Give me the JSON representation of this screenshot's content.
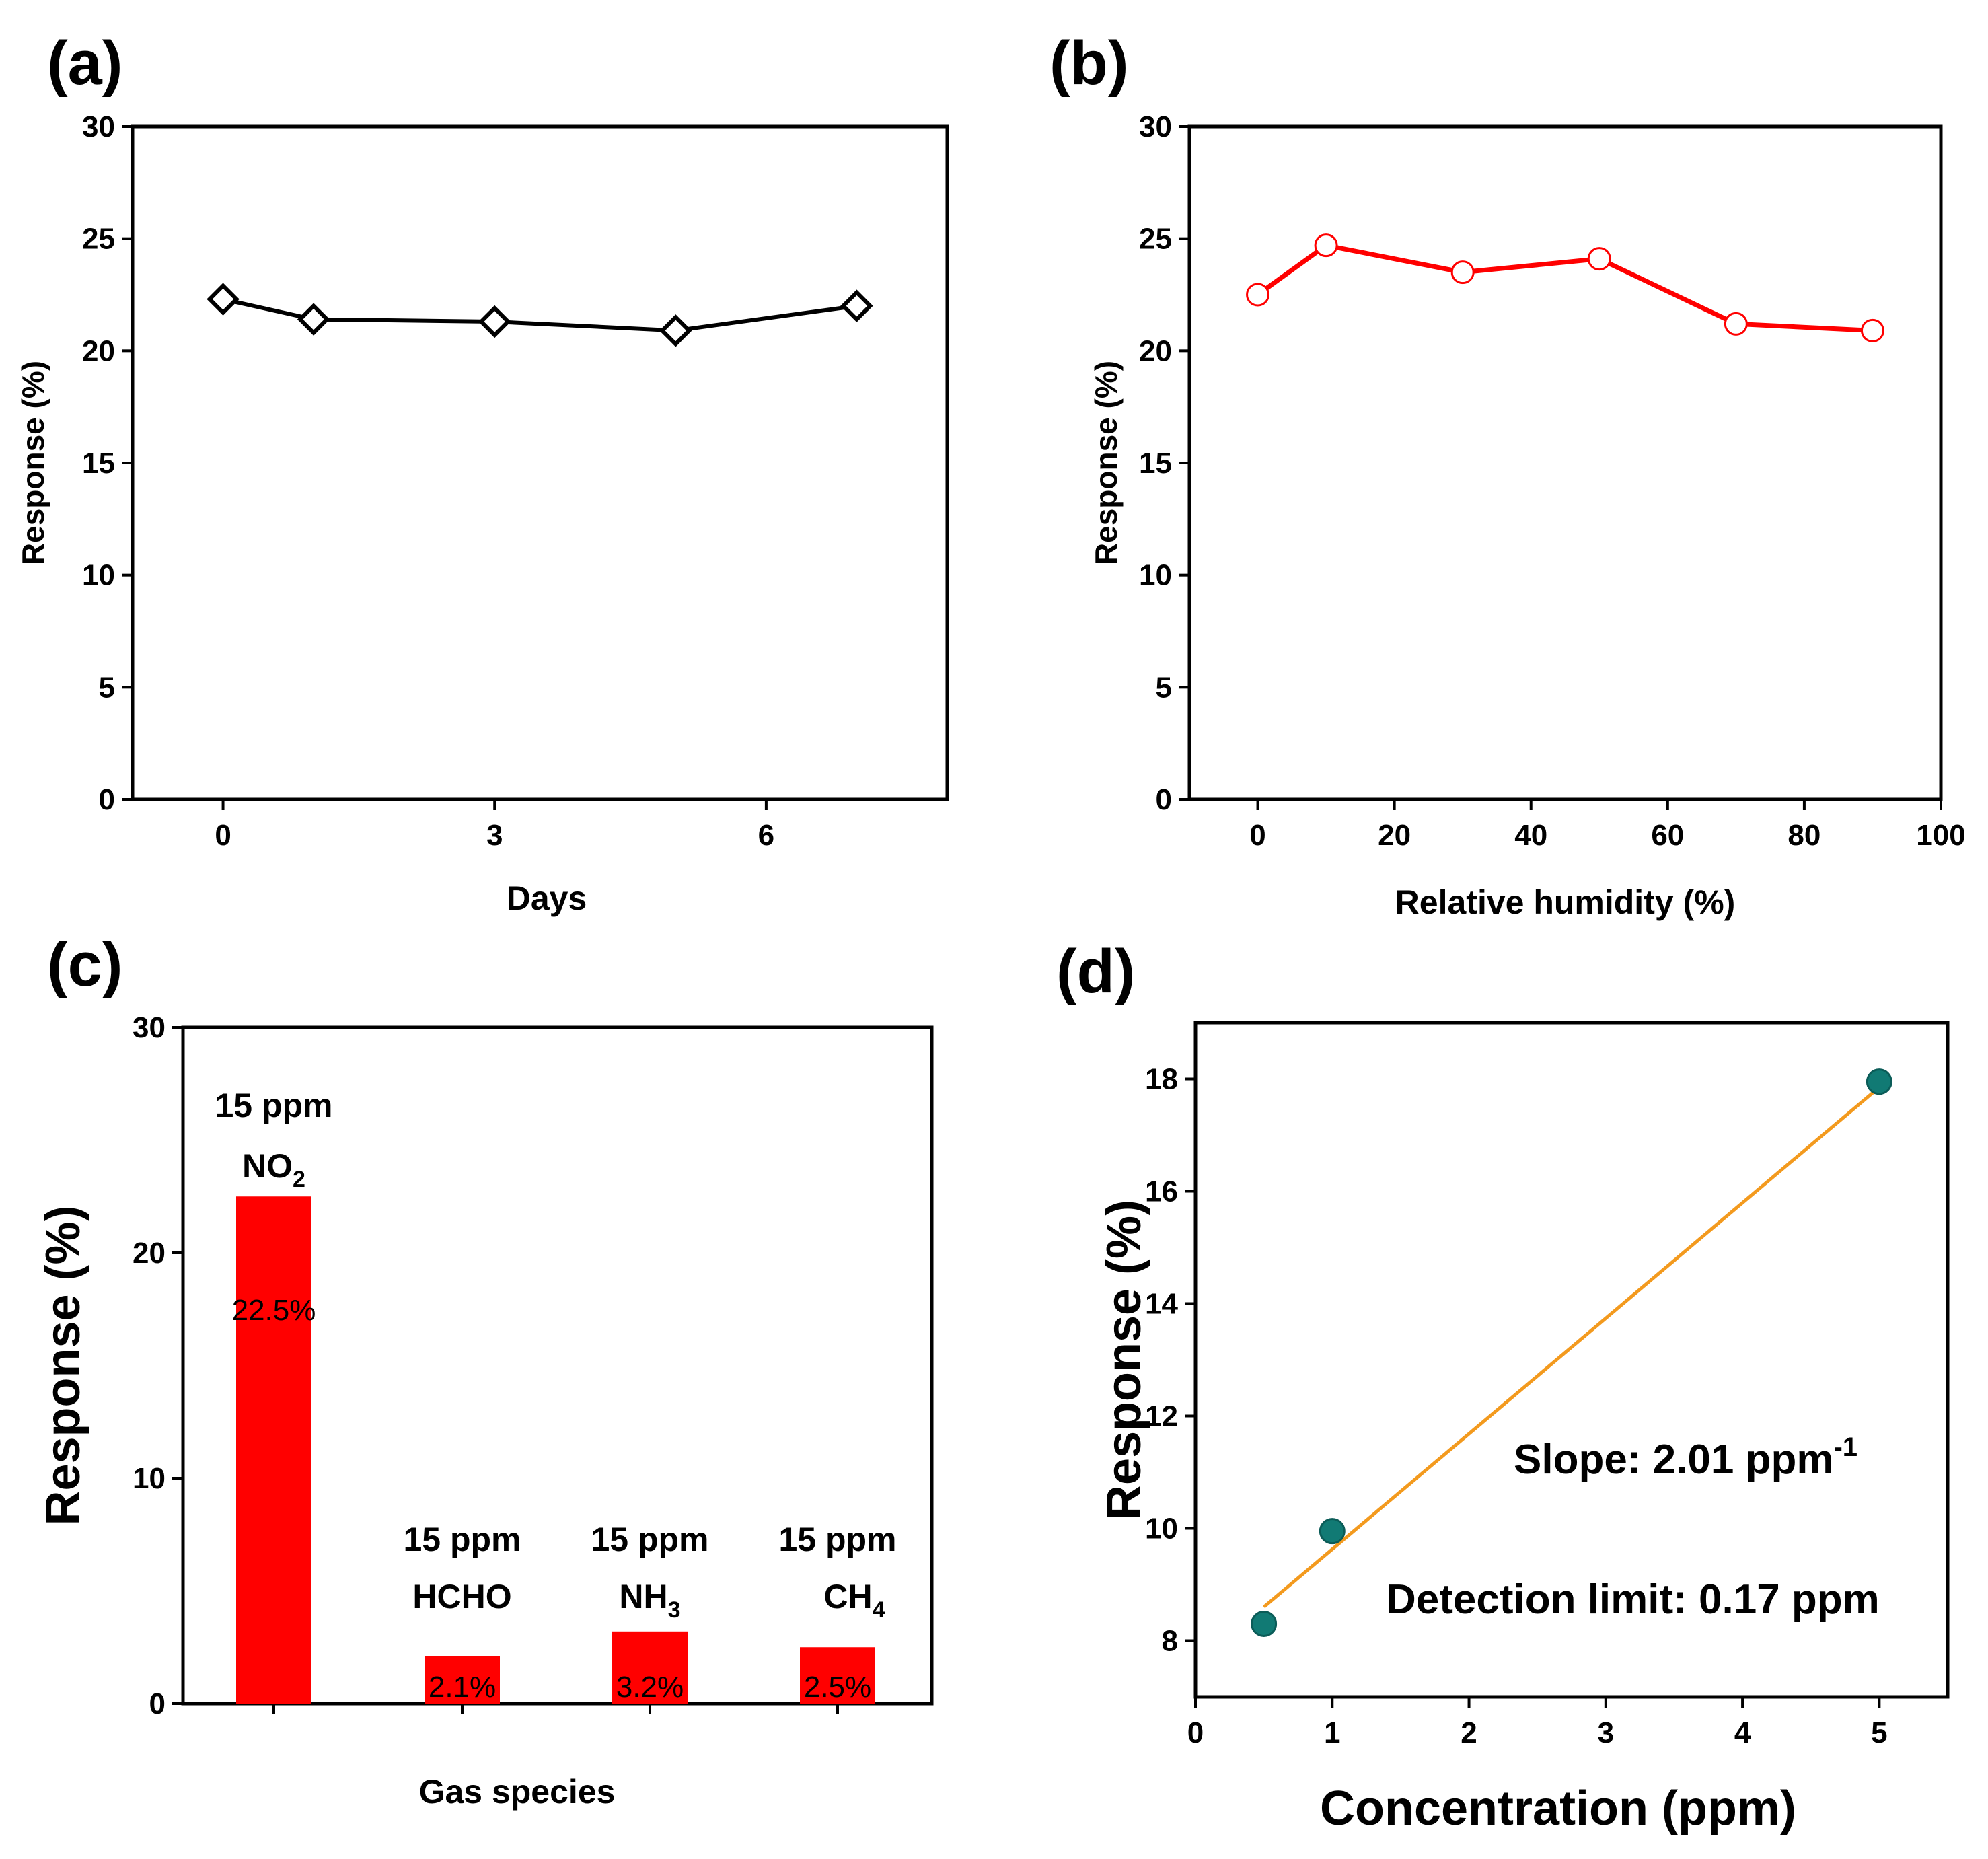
{
  "chart_data": [
    {
      "id": "a",
      "type": "line",
      "panel_label": "(a)",
      "xlabel": "Days",
      "ylabel": "Response (%)",
      "xlim": [
        -1,
        8
      ],
      "ylim": [
        0,
        30
      ],
      "xticks": [
        0,
        3,
        6
      ],
      "yticks": [
        0,
        5,
        10,
        15,
        20,
        25,
        30
      ],
      "series": [
        {
          "name": "Response",
          "marker": "diamond-open",
          "color": "#000000",
          "x": [
            0,
            1,
            3,
            5,
            7
          ],
          "y": [
            22.3,
            21.4,
            21.3,
            20.9,
            22.0
          ]
        }
      ]
    },
    {
      "id": "b",
      "type": "line",
      "panel_label": "(b)",
      "xlabel": "Relative humidity (%)",
      "ylabel": "Response (%)",
      "xlim": [
        -10,
        100
      ],
      "ylim": [
        0,
        30
      ],
      "xticks": [
        0,
        20,
        40,
        60,
        80,
        100
      ],
      "yticks": [
        0,
        5,
        10,
        15,
        20,
        25,
        30
      ],
      "series": [
        {
          "name": "Response",
          "marker": "circle-open",
          "color": "#ff0000",
          "x": [
            0,
            10,
            30,
            50,
            70,
            90
          ],
          "y": [
            22.5,
            24.7,
            23.5,
            24.1,
            21.2,
            20.9
          ]
        }
      ]
    },
    {
      "id": "c",
      "type": "bar",
      "panel_label": "(c)",
      "xlabel": "Gas species",
      "ylabel": "Response (%)",
      "ylim": [
        0,
        30
      ],
      "yticks": [
        0,
        10,
        20,
        30
      ],
      "color": "#ff0000",
      "bars": [
        {
          "conc": "15 ppm",
          "gas": "NO",
          "sub": "2",
          "value": 22.5,
          "value_label": "22.5%"
        },
        {
          "conc": "15 ppm",
          "gas": "HCHO",
          "sub": "",
          "value": 2.1,
          "value_label": "2.1%"
        },
        {
          "conc": "15 ppm",
          "gas": "NH",
          "sub": "3",
          "value": 3.2,
          "value_label": "3.2%"
        },
        {
          "conc": "15 ppm",
          "gas": "CH",
          "sub": "4",
          "value": 2.5,
          "value_label": "2.5%"
        }
      ]
    },
    {
      "id": "d",
      "type": "scatter",
      "panel_label": "(d)",
      "xlabel": "Concentration (ppm)",
      "ylabel": "Response (%)",
      "xlim": [
        0,
        5.5
      ],
      "ylim": [
        7,
        19
      ],
      "xticks": [
        0,
        1,
        2,
        3,
        4,
        5
      ],
      "yticks": [
        8,
        10,
        12,
        14,
        16,
        18
      ],
      "series": [
        {
          "name": "Response",
          "marker": "circle-filled",
          "color": "#117a74",
          "x": [
            0.5,
            1,
            5
          ],
          "y": [
            8.3,
            9.95,
            17.95
          ]
        }
      ],
      "fit": {
        "color": "#f39a1e",
        "x": [
          0.5,
          5
        ],
        "y": [
          8.6,
          17.85
        ]
      },
      "annotations": {
        "slope_prefix": "Slope: 2.01 ppm",
        "slope_sup": "-1",
        "detection": "Detection limit: 0.17 ppm"
      }
    }
  ]
}
